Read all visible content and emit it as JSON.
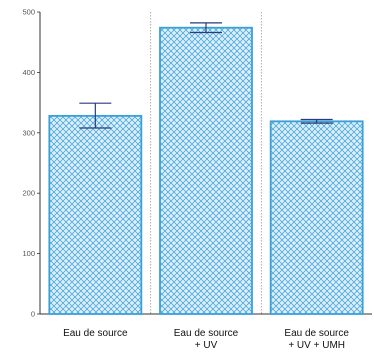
{
  "chart_data": {
    "type": "bar",
    "categories": [
      [
        "Eau de source"
      ],
      [
        "Eau de source",
        "+ UV"
      ],
      [
        "Eau de source",
        "+ UV + UMH"
      ]
    ],
    "values": [
      328,
      474,
      319
    ],
    "error_low": [
      308,
      466,
      316
    ],
    "error_high": [
      349,
      482,
      322
    ],
    "ylim": [
      0,
      500
    ],
    "yticks": [
      0,
      100,
      200,
      300,
      400,
      500
    ],
    "grid": "vertical dotted separators between categories",
    "colors": {
      "bar_edge": "#3aa0d8",
      "bar_fill": "#dbeef9",
      "hatch": "#3aa0d8",
      "error_bar": "#2b3a7a",
      "axis": "#333333",
      "separator": "#999999"
    }
  }
}
